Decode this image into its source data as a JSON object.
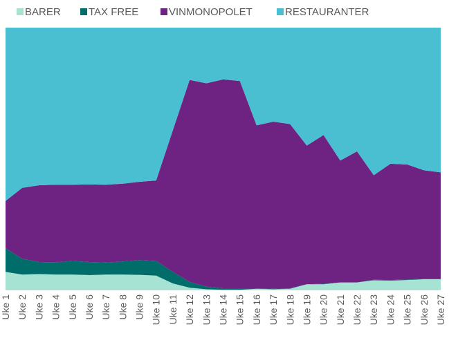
{
  "chart_data": {
    "type": "area",
    "stacking": "percent",
    "categories": [
      "Uke 1",
      "Uke 2",
      "Uke 3",
      "Uke 4",
      "Uke 5",
      "Uke 6",
      "Uke 7",
      "Uke 8",
      "Uke 9",
      "Uke 10",
      "Uke 11",
      "Uke 12",
      "Uke 13",
      "Uke 14",
      "Uke 15",
      "Uke 16",
      "Uke 17",
      "Uke 18",
      "Uke 19",
      "Uke 20",
      "Uke 21",
      "Uke 22",
      "Uke 23",
      "Uke 24",
      "Uke 25",
      "Uke 26",
      "Uke 27"
    ],
    "series": [
      {
        "name": "BARER",
        "color": "#A6E3D3",
        "values": [
          7.0,
          6.0,
          6.2,
          6.0,
          6.0,
          5.8,
          6.0,
          6.0,
          5.9,
          5.6,
          2.6,
          1.0,
          0.4,
          0.2,
          0.2,
          0.6,
          0.4,
          0.6,
          2.3,
          2.3,
          3.0,
          3.0,
          3.8,
          3.7,
          3.9,
          4.2,
          4.2
        ]
      },
      {
        "name": "TAX FREE",
        "color": "#006D6B",
        "values": [
          9.0,
          6.0,
          4.6,
          4.7,
          5.2,
          5.0,
          4.6,
          5.0,
          5.6,
          5.6,
          4.4,
          2.2,
          1.0,
          0.6,
          0.6,
          0.2,
          0.2,
          0.2,
          0.0,
          0.2,
          0.0,
          0.0,
          0.2,
          0.2,
          0.2,
          0.2,
          0.2
        ]
      },
      {
        "name": "VINMONOPOLET",
        "color": "#6E2281",
        "values": [
          18.0,
          27.0,
          29.2,
          29.5,
          29.0,
          29.5,
          29.6,
          29.6,
          29.8,
          30.6,
          54.0,
          76.9,
          77.4,
          79.5,
          78.9,
          62.0,
          63.6,
          62.5,
          52.8,
          56.6,
          46.4,
          49.9,
          39.8,
          44.3,
          43.8,
          41.3,
          40.5
        ]
      },
      {
        "name": "RESTAURANTER",
        "color": "#4BBFD2",
        "values": [
          66.0,
          61.0,
          60.0,
          59.8,
          59.8,
          59.7,
          59.8,
          59.4,
          58.7,
          58.2,
          39.0,
          19.9,
          21.2,
          19.7,
          20.3,
          37.2,
          35.8,
          36.7,
          44.9,
          40.9,
          50.6,
          47.1,
          56.2,
          51.8,
          52.1,
          54.3,
          55.1
        ]
      }
    ],
    "ylim": [
      0,
      100
    ],
    "legend_position": "top-left",
    "grid": false
  }
}
